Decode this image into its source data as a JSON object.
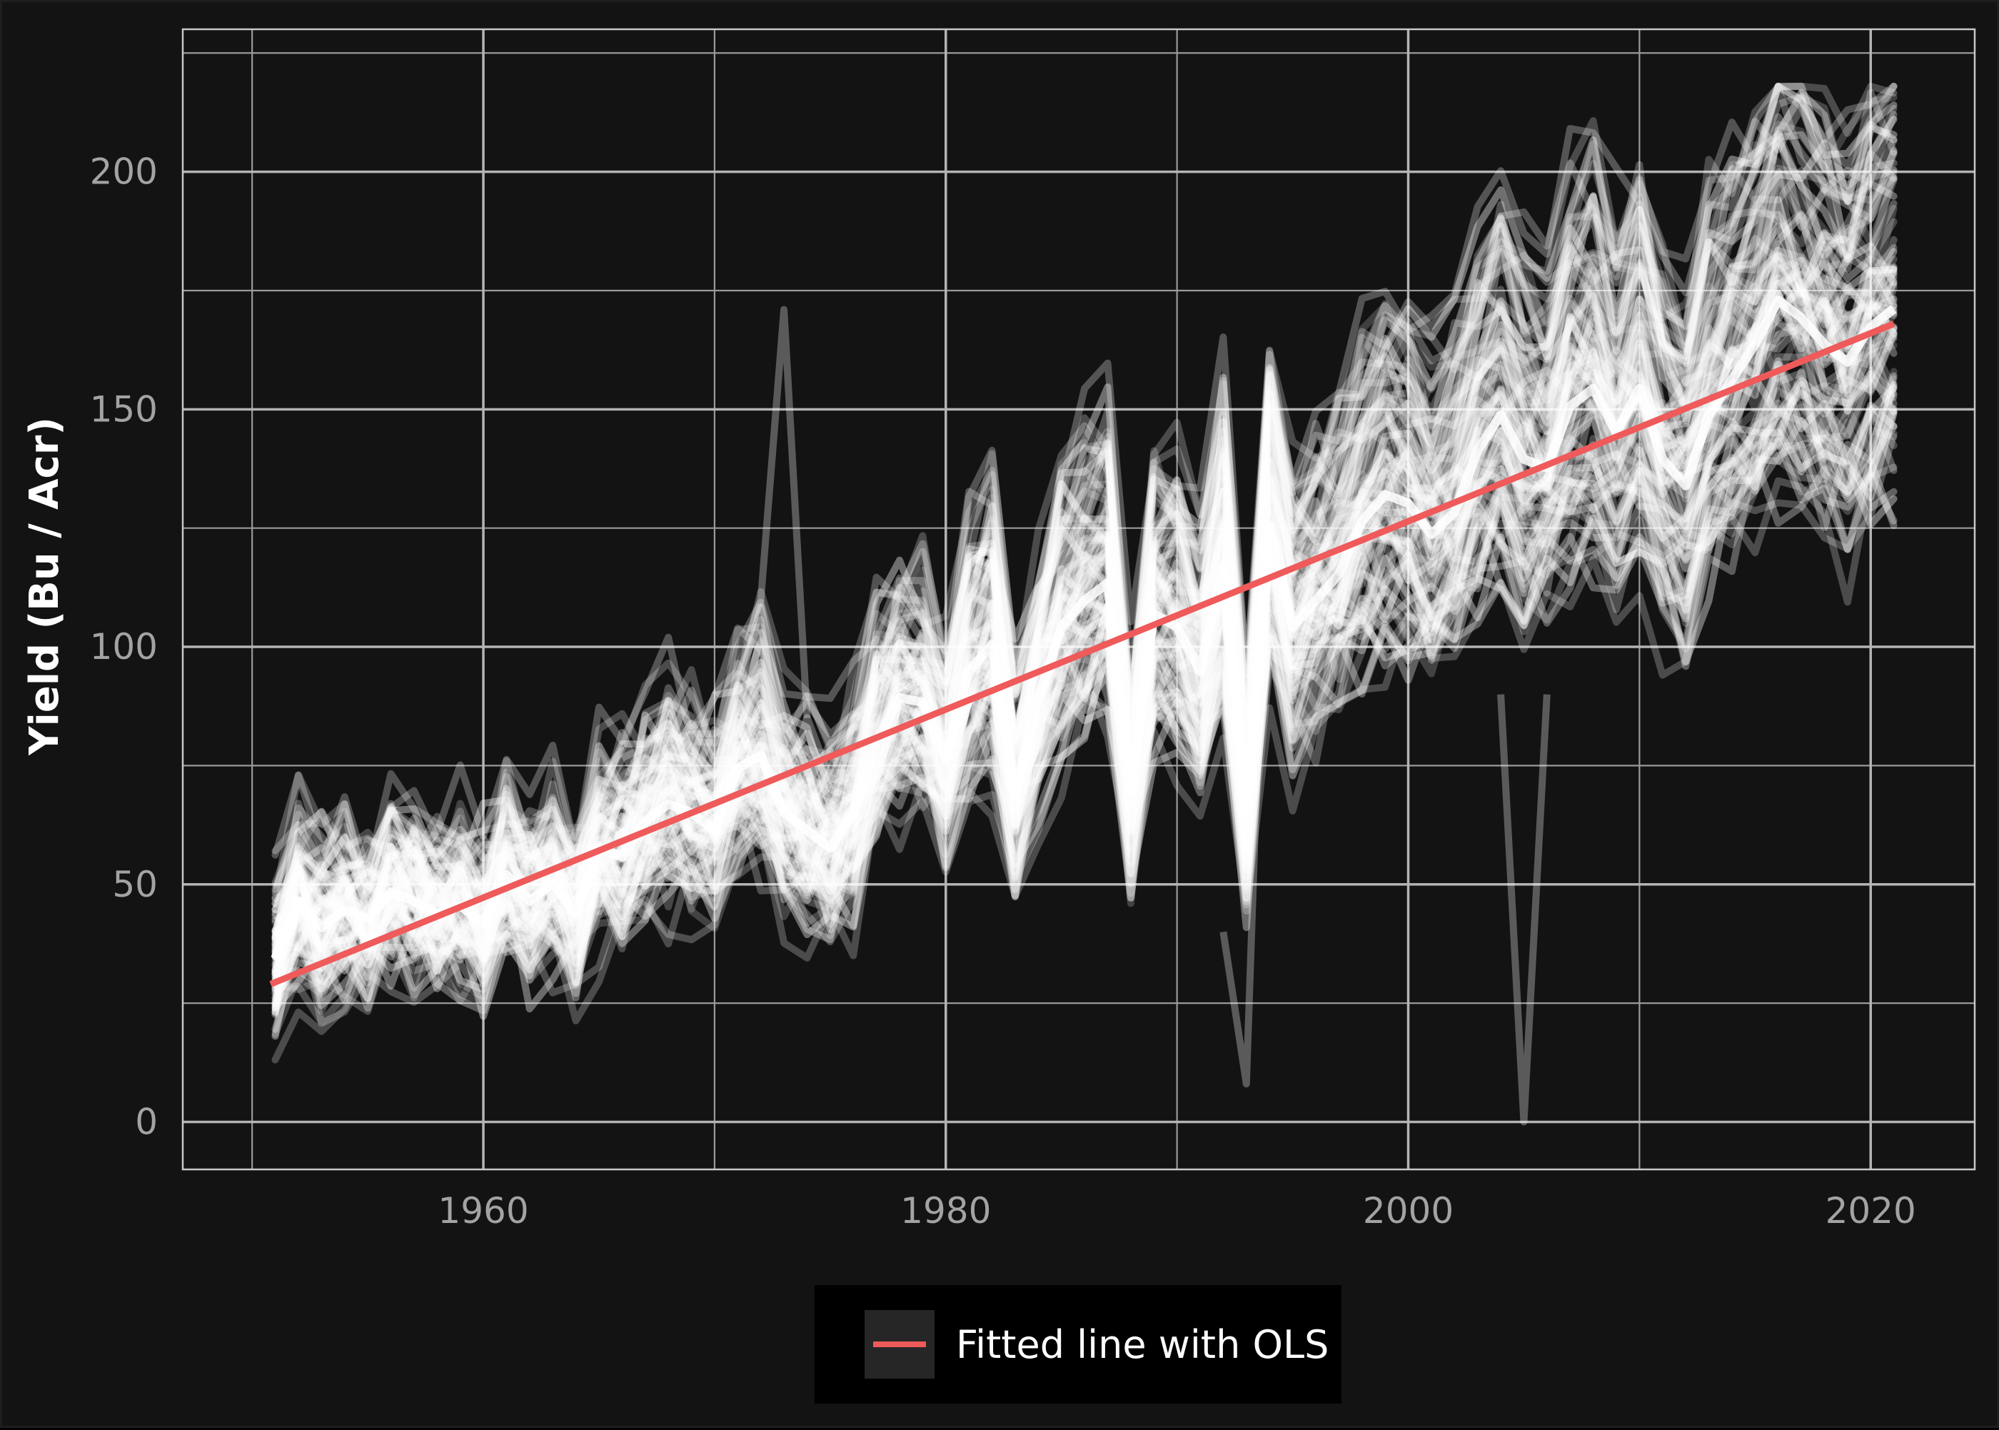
{
  "chart_data": {
    "type": "line",
    "title": "",
    "xlabel": "",
    "ylabel": "Yield (Bu / Acr)",
    "xlim": [
      1947,
      2024.5
    ],
    "ylim": [
      -10,
      230
    ],
    "x_ticks": [
      1960,
      1980,
      2000,
      2020
    ],
    "x_tick_labels": [
      "1960",
      "1980",
      "2000",
      "2020"
    ],
    "y_ticks": [
      0,
      50,
      100,
      150,
      200
    ],
    "y_tick_labels": [
      "0",
      "50",
      "100",
      "150",
      "200"
    ],
    "x_minor_ticks": [
      1950,
      1970,
      1990,
      2010
    ],
    "y_minor_ticks": [
      25,
      75,
      125,
      175,
      225
    ],
    "grid": true,
    "legend_position": "bottom",
    "legend": [
      {
        "label": "Fitted line with OLS",
        "color": "#ef5a5a"
      }
    ],
    "fitted_line": {
      "name": "Fitted line with OLS",
      "x": [
        1950.8,
        2021
      ],
      "y": [
        29,
        168
      ],
      "color": "#ef5a5a"
    },
    "series_color": "#ffffff",
    "mean_yield": {
      "x": [
        1951,
        1952,
        1953,
        1954,
        1955,
        1956,
        1957,
        1958,
        1959,
        1960,
        1961,
        1962,
        1963,
        1964,
        1965,
        1966,
        1967,
        1968,
        1969,
        1970,
        1971,
        1972,
        1973,
        1974,
        1975,
        1976,
        1977,
        1978,
        1979,
        1980,
        1981,
        1982,
        1983,
        1984,
        1985,
        1986,
        1987,
        1988,
        1989,
        1990,
        1991,
        1992,
        1993,
        1994,
        1995,
        1996,
        1997,
        1998,
        1999,
        2000,
        2001,
        2002,
        2003,
        2004,
        2005,
        2006,
        2007,
        2008,
        2009,
        2010,
        2011,
        2012,
        2013,
        2014,
        2015,
        2016,
        2017,
        2018,
        2019,
        2020,
        2021
      ],
      "y": [
        37,
        50,
        44,
        48,
        46,
        52,
        50,
        47,
        49,
        45,
        56,
        50,
        54,
        47,
        62,
        60,
        68,
        72,
        70,
        66,
        80,
        83,
        70,
        66,
        62,
        70,
        86,
        96,
        95,
        82,
        102,
        108,
        74,
        96,
        112,
        118,
        122,
        75,
        115,
        112,
        102,
        126,
        70,
        135,
        112,
        118,
        124,
        136,
        142,
        140,
        133,
        138,
        152,
        160,
        150,
        148,
        162,
        166,
        156,
        166,
        150,
        144,
        160,
        168,
        176,
        186,
        182,
        176,
        172,
        180,
        184
      ]
    },
    "notable_lines": [
      {
        "x": [
          1970,
          1971,
          1972,
          1973,
          1974
        ],
        "y": [
          90,
          95,
          110,
          171,
          85
        ]
      },
      {
        "x": [
          2004,
          2005,
          2006
        ],
        "y": [
          90,
          0,
          90
        ]
      },
      {
        "x": [
          1992,
          1993,
          1994
        ],
        "y": [
          40,
          8,
          150
        ]
      }
    ]
  }
}
